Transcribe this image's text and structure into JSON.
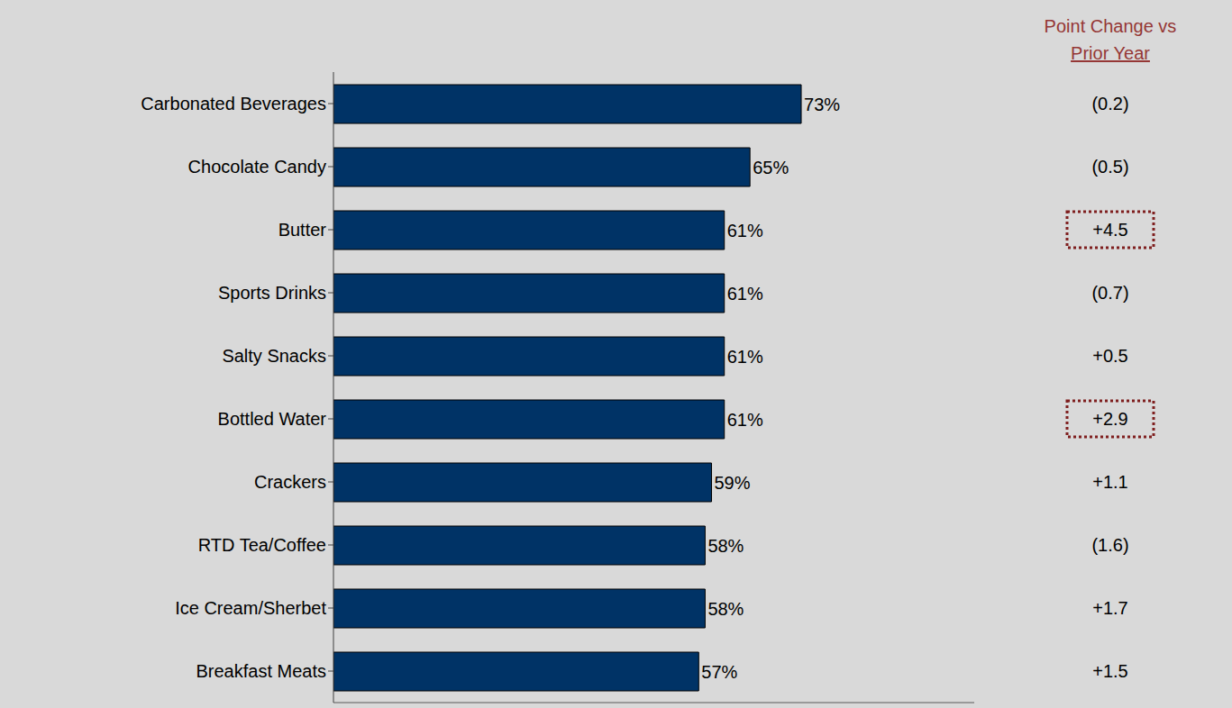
{
  "chart_data": {
    "type": "bar",
    "orientation": "horizontal",
    "categories": [
      "Carbonated Beverages",
      "Chocolate Candy",
      "Butter",
      "Sports Drinks",
      "Salty Snacks",
      "Bottled Water",
      "Crackers",
      "RTD Tea/Coffee",
      "Ice Cream/Sherbet",
      "Breakfast Meats"
    ],
    "values": [
      73,
      65,
      61,
      61,
      61,
      61,
      59,
      58,
      58,
      57
    ],
    "value_labels": [
      "73%",
      "65%",
      "61%",
      "61%",
      "61%",
      "61%",
      "59%",
      "58%",
      "58%",
      "57%"
    ],
    "data_labels": true,
    "color": "#003366",
    "xlim": [
      0,
      100
    ],
    "xticks": [],
    "tick_labels": "y",
    "point_change": {
      "heading": [
        "Point Change vs",
        "Prior Year"
      ],
      "labels": [
        "(0.2)",
        "(0.5)",
        "+4.5",
        "(0.7)",
        "+0.5",
        "+2.9",
        "+1.1",
        "(1.6)",
        "+1.7",
        "+1.5"
      ],
      "highlighted": [
        "Butter",
        "Bottled Water"
      ]
    }
  }
}
